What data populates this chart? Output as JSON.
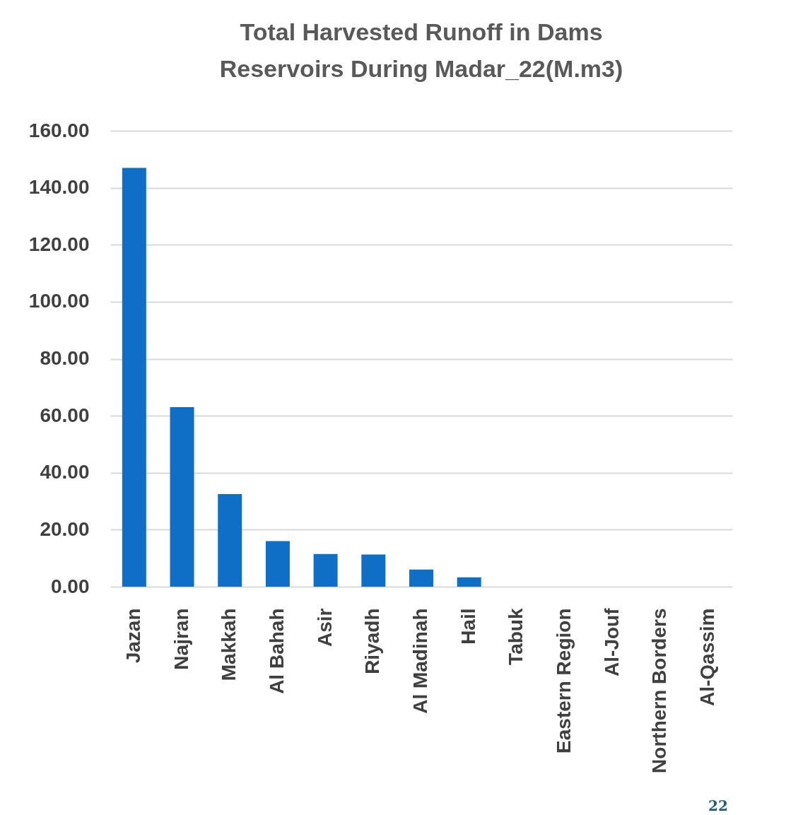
{
  "chart_data": {
    "type": "bar",
    "title": "Total Harvested Runoff in Dams Reservoirs During Madar_22(M.m3)",
    "categories": [
      "Jazan",
      "Najran",
      "Makkah",
      "Al Bahah",
      "Asir",
      "Riyadh",
      "Al Madinah",
      "Hail",
      "Tabuk",
      "Eastern Region",
      "Al-Jouf",
      "Northern Borders",
      "Al-Qassim"
    ],
    "values": [
      147,
      63,
      32.5,
      16,
      11.5,
      11.3,
      6,
      3.3,
      0,
      0,
      0,
      0,
      0
    ],
    "color": "#0f6fc6",
    "ylim": [
      0,
      160
    ],
    "yticks": [
      {
        "value": 0,
        "label": "0.00"
      },
      {
        "value": 20,
        "label": "20.00"
      },
      {
        "value": 40,
        "label": "40.00"
      },
      {
        "value": 60,
        "label": "60.00"
      },
      {
        "value": 80,
        "label": "80.00"
      },
      {
        "value": 100,
        "label": "100.00"
      },
      {
        "value": 120,
        "label": "120.00"
      },
      {
        "value": 140,
        "label": "140.00"
      },
      {
        "value": 160,
        "label": "160.00"
      }
    ],
    "grid": "y",
    "annotations": [
      "22"
    ]
  }
}
